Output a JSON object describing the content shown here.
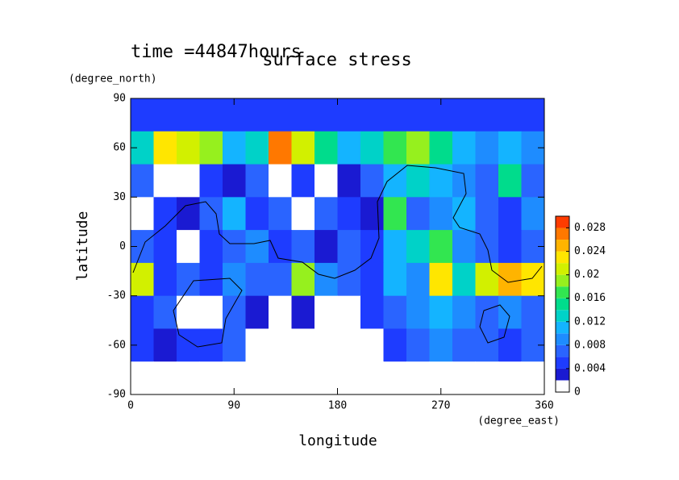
{
  "chart_data": {
    "type": "heatmap",
    "time_label": "time =44847hours",
    "title": "surface stress",
    "x_label": "longitude",
    "x_unit": "(degree_east)",
    "y_label": "latitude",
    "y_unit": "(degree_north)",
    "xlim": [
      0,
      360
    ],
    "ylim": [
      -90,
      90
    ],
    "xticks": [
      0,
      90,
      180,
      270,
      360
    ],
    "yticks": [
      -90,
      -60,
      -30,
      0,
      30,
      60,
      90
    ],
    "x": [
      10,
      30,
      50,
      70,
      90,
      110,
      130,
      150,
      170,
      190,
      210,
      230,
      250,
      270,
      290,
      310,
      330,
      350
    ],
    "y": [
      80,
      60,
      40,
      20,
      0,
      -20,
      -40,
      -60,
      -80
    ],
    "values": [
      [
        0.005,
        0.005,
        0.005,
        0.005,
        0.005,
        0.005,
        0.005,
        0.005,
        0.005,
        0.005,
        0.005,
        0.005,
        0.005,
        0.005,
        0.005,
        0.005,
        0.005,
        0.005
      ],
      [
        0.012,
        0.022,
        0.02,
        0.018,
        0.01,
        0.012,
        0.026,
        0.02,
        0.014,
        0.01,
        0.012,
        0.016,
        0.018,
        0.014,
        0.01,
        0.008,
        0.01,
        0.008
      ],
      [
        0.006,
        0.001,
        0.001,
        0.004,
        0.003,
        0.006,
        0.001,
        0.004,
        0.001,
        0.003,
        0.006,
        0.01,
        0.012,
        0.01,
        0.008,
        0.006,
        0.014,
        0.006
      ],
      [
        0.001,
        0.004,
        0.003,
        0.006,
        0.01,
        0.004,
        0.006,
        0.001,
        0.006,
        0.004,
        0.003,
        0.016,
        0.006,
        0.008,
        0.01,
        0.006,
        0.004,
        0.008
      ],
      [
        0.006,
        0.004,
        0.001,
        0.004,
        0.006,
        0.008,
        0.004,
        0.006,
        0.003,
        0.006,
        0.004,
        0.01,
        0.012,
        0.016,
        0.008,
        0.006,
        0.004,
        0.006
      ],
      [
        0.02,
        0.004,
        0.006,
        0.004,
        0.008,
        0.006,
        0.006,
        0.018,
        0.008,
        0.006,
        0.004,
        0.01,
        0.008,
        0.022,
        0.012,
        0.02,
        0.024,
        0.022
      ],
      [
        0.004,
        0.006,
        0.001,
        0.001,
        0.006,
        0.003,
        0.001,
        0.003,
        0.001,
        0.001,
        0.004,
        0.006,
        0.008,
        0.01,
        0.008,
        0.006,
        0.008,
        0.006
      ],
      [
        0.004,
        0.003,
        0.004,
        0.004,
        0.006,
        0.001,
        0.001,
        0.001,
        0.001,
        0.001,
        0.001,
        0.004,
        0.006,
        0.008,
        0.006,
        0.006,
        0.004,
        0.006
      ],
      [
        0,
        0,
        0,
        0,
        0,
        0,
        0,
        0,
        0,
        0,
        0,
        0,
        0,
        0,
        0,
        0,
        0,
        0
      ]
    ],
    "levels": [
      0,
      0.002,
      0.004,
      0.006,
      0.008,
      0.01,
      0.012,
      0.014,
      0.016,
      0.018,
      0.02,
      0.022,
      0.024,
      0.026,
      0.028,
      0.03
    ],
    "colors": [
      "#ffffff",
      "#1a1ad2",
      "#1e3cff",
      "#2a64ff",
      "#1e8cff",
      "#14b4ff",
      "#00d2c8",
      "#00dc8c",
      "#32e650",
      "#96f01e",
      "#d2f000",
      "#ffe600",
      "#ffb400",
      "#ff7800",
      "#ff3c00"
    ],
    "colorbar_ticks": [
      0,
      0.004,
      0.008,
      0.012,
      0.016,
      0.02,
      0.024,
      0.028
    ]
  }
}
